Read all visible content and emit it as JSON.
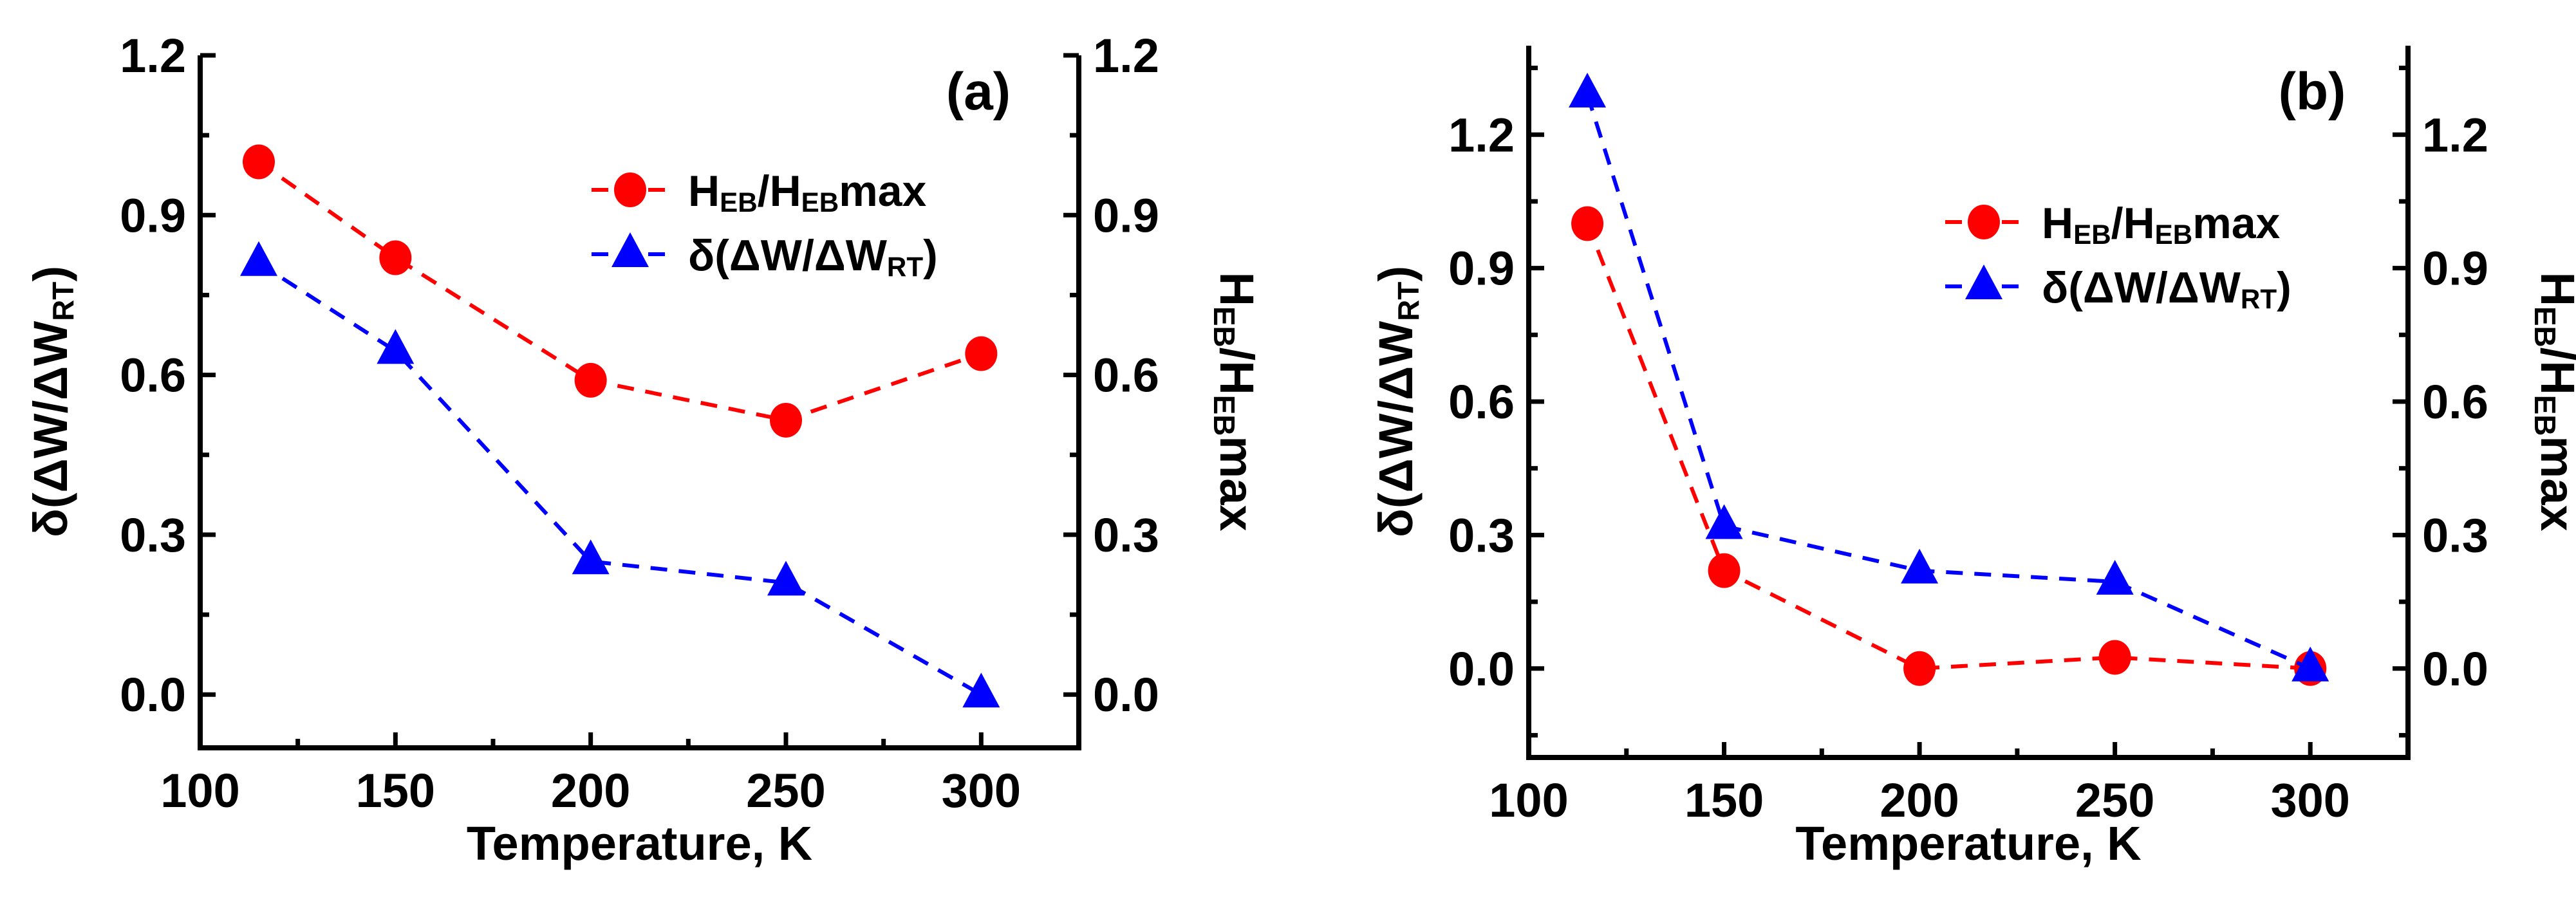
{
  "chart_data": [
    {
      "type": "line",
      "panel_label": "(a)",
      "xlabel": "Temperature, K",
      "ylabel_left": {
        "base": "δ(ΔW/ΔW",
        "sub": "RT",
        "end": ")"
      },
      "ylabel_right": {
        "parts": [
          "H",
          "EB",
          "/H",
          "EB",
          "max"
        ]
      },
      "xlim": [
        100,
        325
      ],
      "ylim": [
        -0.1,
        1.2
      ],
      "x_ticks": [
        100,
        150,
        200,
        250,
        300
      ],
      "x_tick_labels": [
        "100",
        "150",
        "200",
        "250",
        "300"
      ],
      "y_ticks": [
        0.0,
        0.3,
        0.6,
        0.9,
        1.2
      ],
      "y_tick_labels": [
        "0.0",
        "0.3",
        "0.6",
        "0.9",
        "1.2"
      ],
      "legend_position": "upper-center",
      "series": [
        {
          "name": "HEB/HEBmax",
          "legend": [
            "H",
            "EB",
            "/H",
            "EB",
            "max"
          ],
          "color": "#ff0000",
          "marker": "circle",
          "x": [
            115,
            150,
            200,
            250,
            300
          ],
          "y": [
            1.0,
            0.82,
            0.59,
            0.515,
            0.64
          ]
        },
        {
          "name": "δ(ΔW/ΔWRT)",
          "legend": [
            "δ(ΔW/ΔW",
            "RT",
            ")"
          ],
          "color": "#0000ff",
          "marker": "triangle",
          "x": [
            115,
            150,
            200,
            250,
            300
          ],
          "y": [
            0.81,
            0.645,
            0.25,
            0.21,
            0.0
          ]
        }
      ]
    },
    {
      "type": "line",
      "panel_label": "(b)",
      "xlabel": "Temperature, K",
      "ylabel_left": {
        "base": "δ(ΔW/ΔW",
        "sub": "RT",
        "end": ")"
      },
      "ylabel_right": {
        "parts": [
          "H",
          "EB",
          "/H",
          "EB",
          "max"
        ]
      },
      "xlim": [
        100,
        325
      ],
      "ylim": [
        -0.2,
        1.4
      ],
      "x_ticks": [
        100,
        150,
        200,
        250,
        300
      ],
      "x_tick_labels": [
        "100",
        "150",
        "200",
        "250",
        "300"
      ],
      "y_ticks": [
        0.0,
        0.3,
        0.6,
        0.9,
        1.2
      ],
      "y_tick_labels": [
        "0.0",
        "0.3",
        "0.6",
        "0.9",
        "1.2"
      ],
      "legend_position": "upper-center",
      "series": [
        {
          "name": "HEB/HEBmax",
          "legend": [
            "H",
            "EB",
            "/H",
            "EB",
            "max"
          ],
          "color": "#ff0000",
          "marker": "circle",
          "x": [
            115,
            150,
            200,
            250,
            300
          ],
          "y": [
            1.0,
            0.22,
            0.0,
            0.025,
            0.0
          ]
        },
        {
          "name": "δ(ΔW/ΔWRT)",
          "legend": [
            "δ(ΔW/ΔW",
            "RT",
            ")"
          ],
          "color": "#0000ff",
          "marker": "triangle",
          "x": [
            115,
            150,
            200,
            250,
            300
          ],
          "y": [
            1.29,
            0.32,
            0.22,
            0.195,
            0.0
          ]
        }
      ]
    }
  ]
}
